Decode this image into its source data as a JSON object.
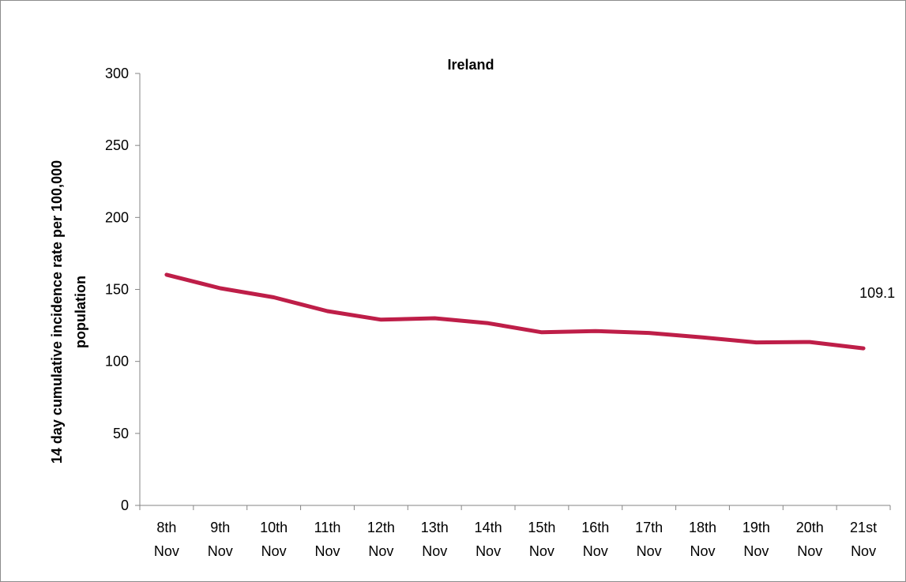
{
  "chart_data": {
    "type": "line",
    "title": "Ireland",
    "xlabel": "",
    "ylabel_lines": [
      "14 day cumulative incidence rate per 100,000",
      "population"
    ],
    "categories": [
      [
        "8th",
        "Nov"
      ],
      [
        "9th",
        "Nov"
      ],
      [
        "10th",
        "Nov"
      ],
      [
        "11th",
        "Nov"
      ],
      [
        "12th",
        "Nov"
      ],
      [
        "13th",
        "Nov"
      ],
      [
        "14th",
        "Nov"
      ],
      [
        "15th",
        "Nov"
      ],
      [
        "16th",
        "Nov"
      ],
      [
        "17th",
        "Nov"
      ],
      [
        "18th",
        "Nov"
      ],
      [
        "19th",
        "Nov"
      ],
      [
        "20th",
        "Nov"
      ],
      [
        "21st",
        "Nov"
      ]
    ],
    "series": [
      {
        "values": [
          160.2,
          150.8,
          144.5,
          134.9,
          129.0,
          130.0,
          126.5,
          120.2,
          121.1,
          119.8,
          116.7,
          113.2,
          113.5,
          109.1
        ],
        "color": "#BE1E48"
      }
    ],
    "ylim": [
      0,
      300
    ],
    "yticks": [
      0,
      50,
      100,
      150,
      200,
      250,
      300
    ],
    "grid": false,
    "legend": "none",
    "data_labels": [
      {
        "index": 13,
        "text": "109.1"
      }
    ]
  }
}
